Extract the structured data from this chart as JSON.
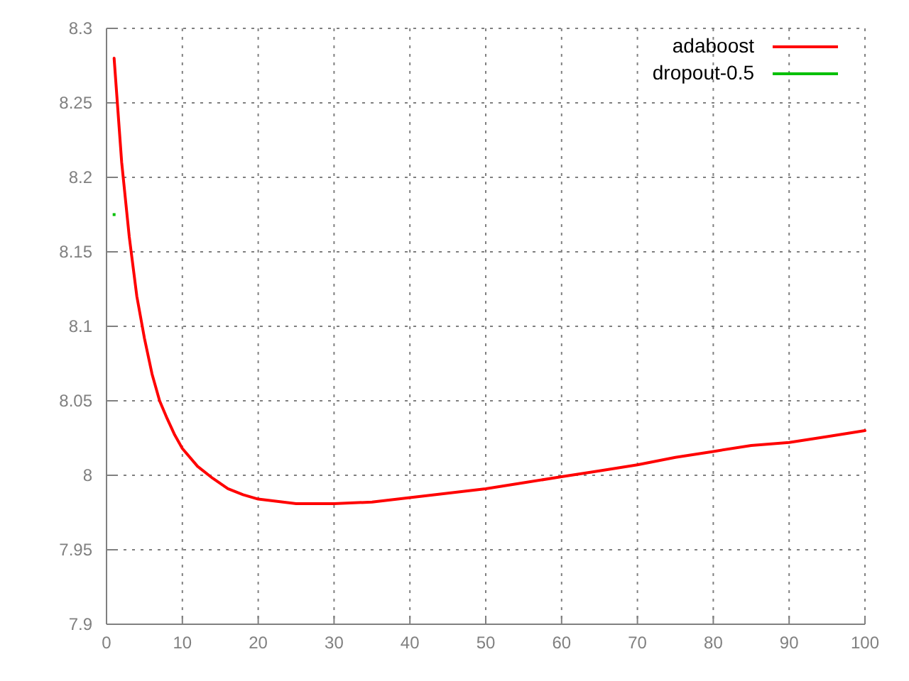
{
  "chart_data": {
    "type": "line",
    "xlim": [
      0,
      100
    ],
    "ylim": [
      7.9,
      8.3
    ],
    "xticks": [
      0,
      10,
      20,
      30,
      40,
      50,
      60,
      70,
      80,
      90,
      100
    ],
    "yticks": [
      7.9,
      7.95,
      8,
      8.05,
      8.1,
      8.15,
      8.2,
      8.25,
      8.3
    ],
    "grid": true,
    "legend": "top right",
    "series": [
      {
        "name": "adaboost",
        "color": "#ff0000",
        "x": [
          1,
          2,
          3,
          4,
          5,
          6,
          7,
          8,
          9,
          10,
          12,
          14,
          16,
          18,
          20,
          25,
          30,
          35,
          40,
          45,
          50,
          55,
          60,
          65,
          70,
          75,
          80,
          85,
          90,
          95,
          100
        ],
        "values": [
          8.28,
          8.21,
          8.16,
          8.12,
          8.092,
          8.068,
          8.05,
          8.038,
          8.027,
          8.018,
          8.006,
          7.998,
          7.991,
          7.987,
          7.984,
          7.981,
          7.981,
          7.982,
          7.985,
          7.988,
          7.991,
          7.995,
          7.999,
          8.003,
          8.007,
          8.012,
          8.016,
          8.02,
          8.022,
          8.026,
          8.03
        ]
      },
      {
        "name": "dropout-0.5",
        "color": "#00c000",
        "type": "scatter",
        "x": [
          1
        ],
        "values": [
          8.175
        ]
      }
    ]
  }
}
